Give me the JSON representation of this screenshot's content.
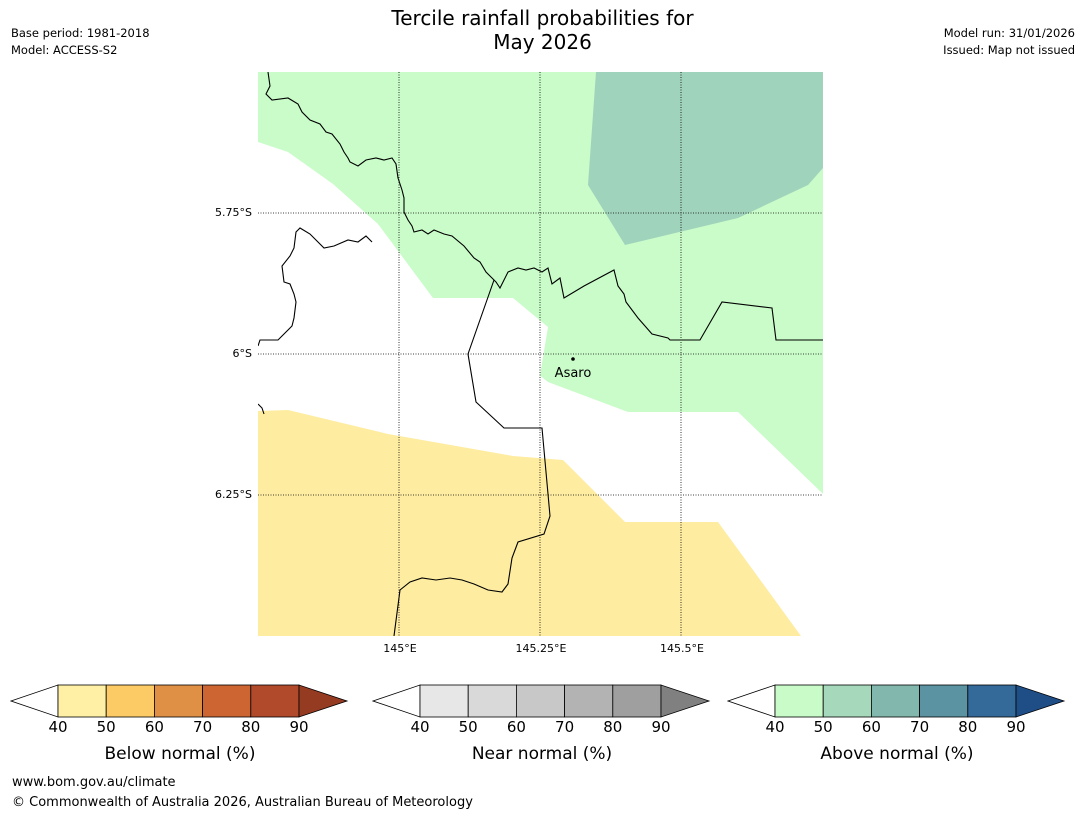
{
  "title_line1": "Tercile rainfall probabilities for",
  "title_line2": "May 2026",
  "meta_left": {
    "base_period": "Base period: 1981-2018",
    "model": "Model: ACCESS-S2"
  },
  "meta_right": {
    "model_run": "Model run: 31/01/2026",
    "issued": "Issued: Map not issued"
  },
  "map": {
    "lat_labels": [
      "5.75°S",
      "6°S",
      "6.25°S"
    ],
    "lon_labels": [
      "145°E",
      "145.25°E",
      "145.5°E"
    ],
    "place_label": "Asaro",
    "colors": {
      "above_40_50": "#c9fcc9",
      "above_50_60": "#a0d3bb",
      "below_40_50": "#feeca1",
      "boundary": "#000000"
    }
  },
  "colorbars": [
    {
      "label": "Below normal (%)",
      "ticks": [
        "40",
        "50",
        "60",
        "70",
        "80",
        "90"
      ],
      "colors": [
        "#ffffff",
        "#fff0a5",
        "#fdcb66",
        "#e09045",
        "#cd6533",
        "#b04a2a",
        "#953b22"
      ]
    },
    {
      "label": "Near normal (%)",
      "ticks": [
        "40",
        "50",
        "60",
        "70",
        "80",
        "90"
      ],
      "colors": [
        "#ffffff",
        "#e7e7e7",
        "#d9d9d9",
        "#c8c8c8",
        "#b3b3b3",
        "#9f9f9f",
        "#808080"
      ]
    },
    {
      "label": "Above normal (%)",
      "ticks": [
        "40",
        "50",
        "60",
        "70",
        "80",
        "90"
      ],
      "colors": [
        "#ffffff",
        "#c8fbc8",
        "#a6d9bb",
        "#82b7ae",
        "#5b93a2",
        "#336a9a",
        "#1f4d86"
      ]
    }
  ],
  "footer": {
    "url": "www.bom.gov.au/climate",
    "copyright": "© Commonwealth of Australia 2026, Australian Bureau of Meteorology"
  }
}
